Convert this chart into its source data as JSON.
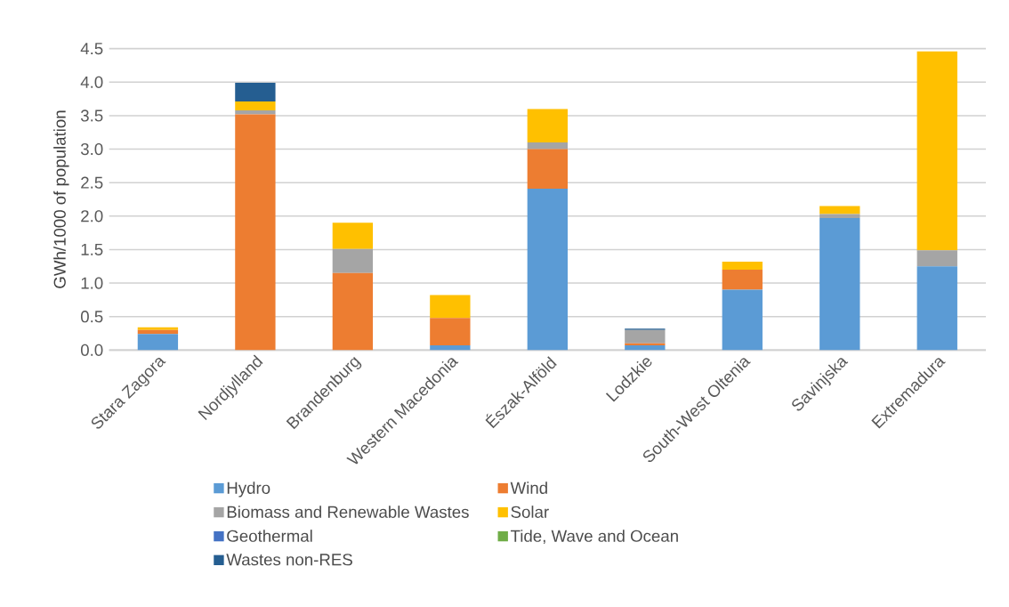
{
  "chart_data": {
    "type": "bar",
    "stacked": true,
    "ylabel": "GWh/1000 of population",
    "categories": [
      "Stara Zagora",
      "Nordjylland",
      "Brandenburg",
      "Western Macedonia",
      "Észak-Alföld",
      "Lodzkie",
      "South-West Oltenia",
      "Savinjska",
      "Extremadura"
    ],
    "series": [
      {
        "name": "Hydro",
        "color": "#5b9bd5",
        "values": [
          0.24,
          0,
          0,
          0.07,
          2.41,
          0.07,
          0.9,
          1.97,
          1.25
        ]
      },
      {
        "name": "Wind",
        "color": "#ed7d31",
        "values": [
          0.06,
          3.52,
          1.15,
          0.41,
          0.59,
          0.03,
          0.3,
          0,
          0
        ]
      },
      {
        "name": "Biomass and Renewable Wastes",
        "color": "#a5a5a5",
        "values": [
          null,
          0.06,
          0.36,
          null,
          0.1,
          0.2,
          0,
          0.06,
          0.24
        ]
      },
      {
        "name": "Solar",
        "color": "#ffc000",
        "values": [
          0.04,
          0.13,
          0.39,
          0.34,
          0.5,
          0,
          0.12,
          0.12,
          2.97
        ]
      },
      {
        "name": "Geothermal",
        "color": "#4472c4",
        "values": [
          0,
          0,
          0,
          0,
          0,
          0,
          0,
          0,
          0
        ]
      },
      {
        "name": "Tide, Wave and Ocean",
        "color": "#70ad47",
        "values": [
          0,
          0,
          0,
          0,
          0,
          0,
          0,
          0,
          0
        ]
      },
      {
        "name": "Wastes non-RES",
        "color": "#255e91",
        "values": [
          0,
          0.28,
          0,
          0,
          0,
          0.02,
          0,
          0,
          0
        ]
      }
    ],
    "ylim": [
      0,
      4.5
    ],
    "yticks": [
      {
        "value": 0,
        "label": "0.0"
      },
      0.5,
      {
        "value": 1,
        "label": "1.0"
      },
      1.5,
      {
        "value": 2,
        "label": "2.0"
      },
      2.5,
      {
        "value": 3,
        "label": "3.0"
      },
      3.5,
      {
        "value": 4,
        "label": "4.0"
      },
      4.5
    ],
    "grid": "y",
    "legend": "bottom"
  }
}
